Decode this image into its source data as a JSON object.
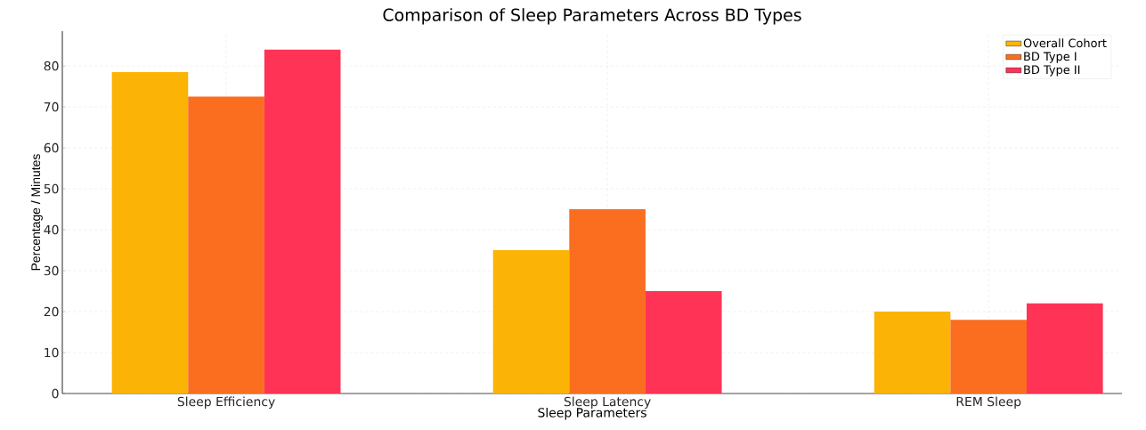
{
  "chart_data": {
    "type": "bar",
    "title": "Comparison of Sleep Parameters Across BD Types",
    "xlabel": "Sleep Parameters",
    "ylabel": "Percentage / Minutes",
    "categories": [
      "Sleep Efficiency",
      "Sleep Latency",
      "REM Sleep"
    ],
    "series": [
      {
        "name": "Overall Cohort",
        "color": "#fbb405",
        "values": [
          78.5,
          35,
          20
        ]
      },
      {
        "name": "BD Type I",
        "color": "#fb6d1f",
        "values": [
          72.5,
          45,
          18
        ]
      },
      {
        "name": "BD Type II",
        "color": "#ff3355",
        "values": [
          84,
          25,
          22
        ]
      }
    ],
    "ylim": [
      0,
      88.5
    ],
    "yticks": [
      0,
      10,
      20,
      30,
      40,
      50,
      60,
      70,
      80
    ],
    "grid": true,
    "legend": "top right"
  }
}
